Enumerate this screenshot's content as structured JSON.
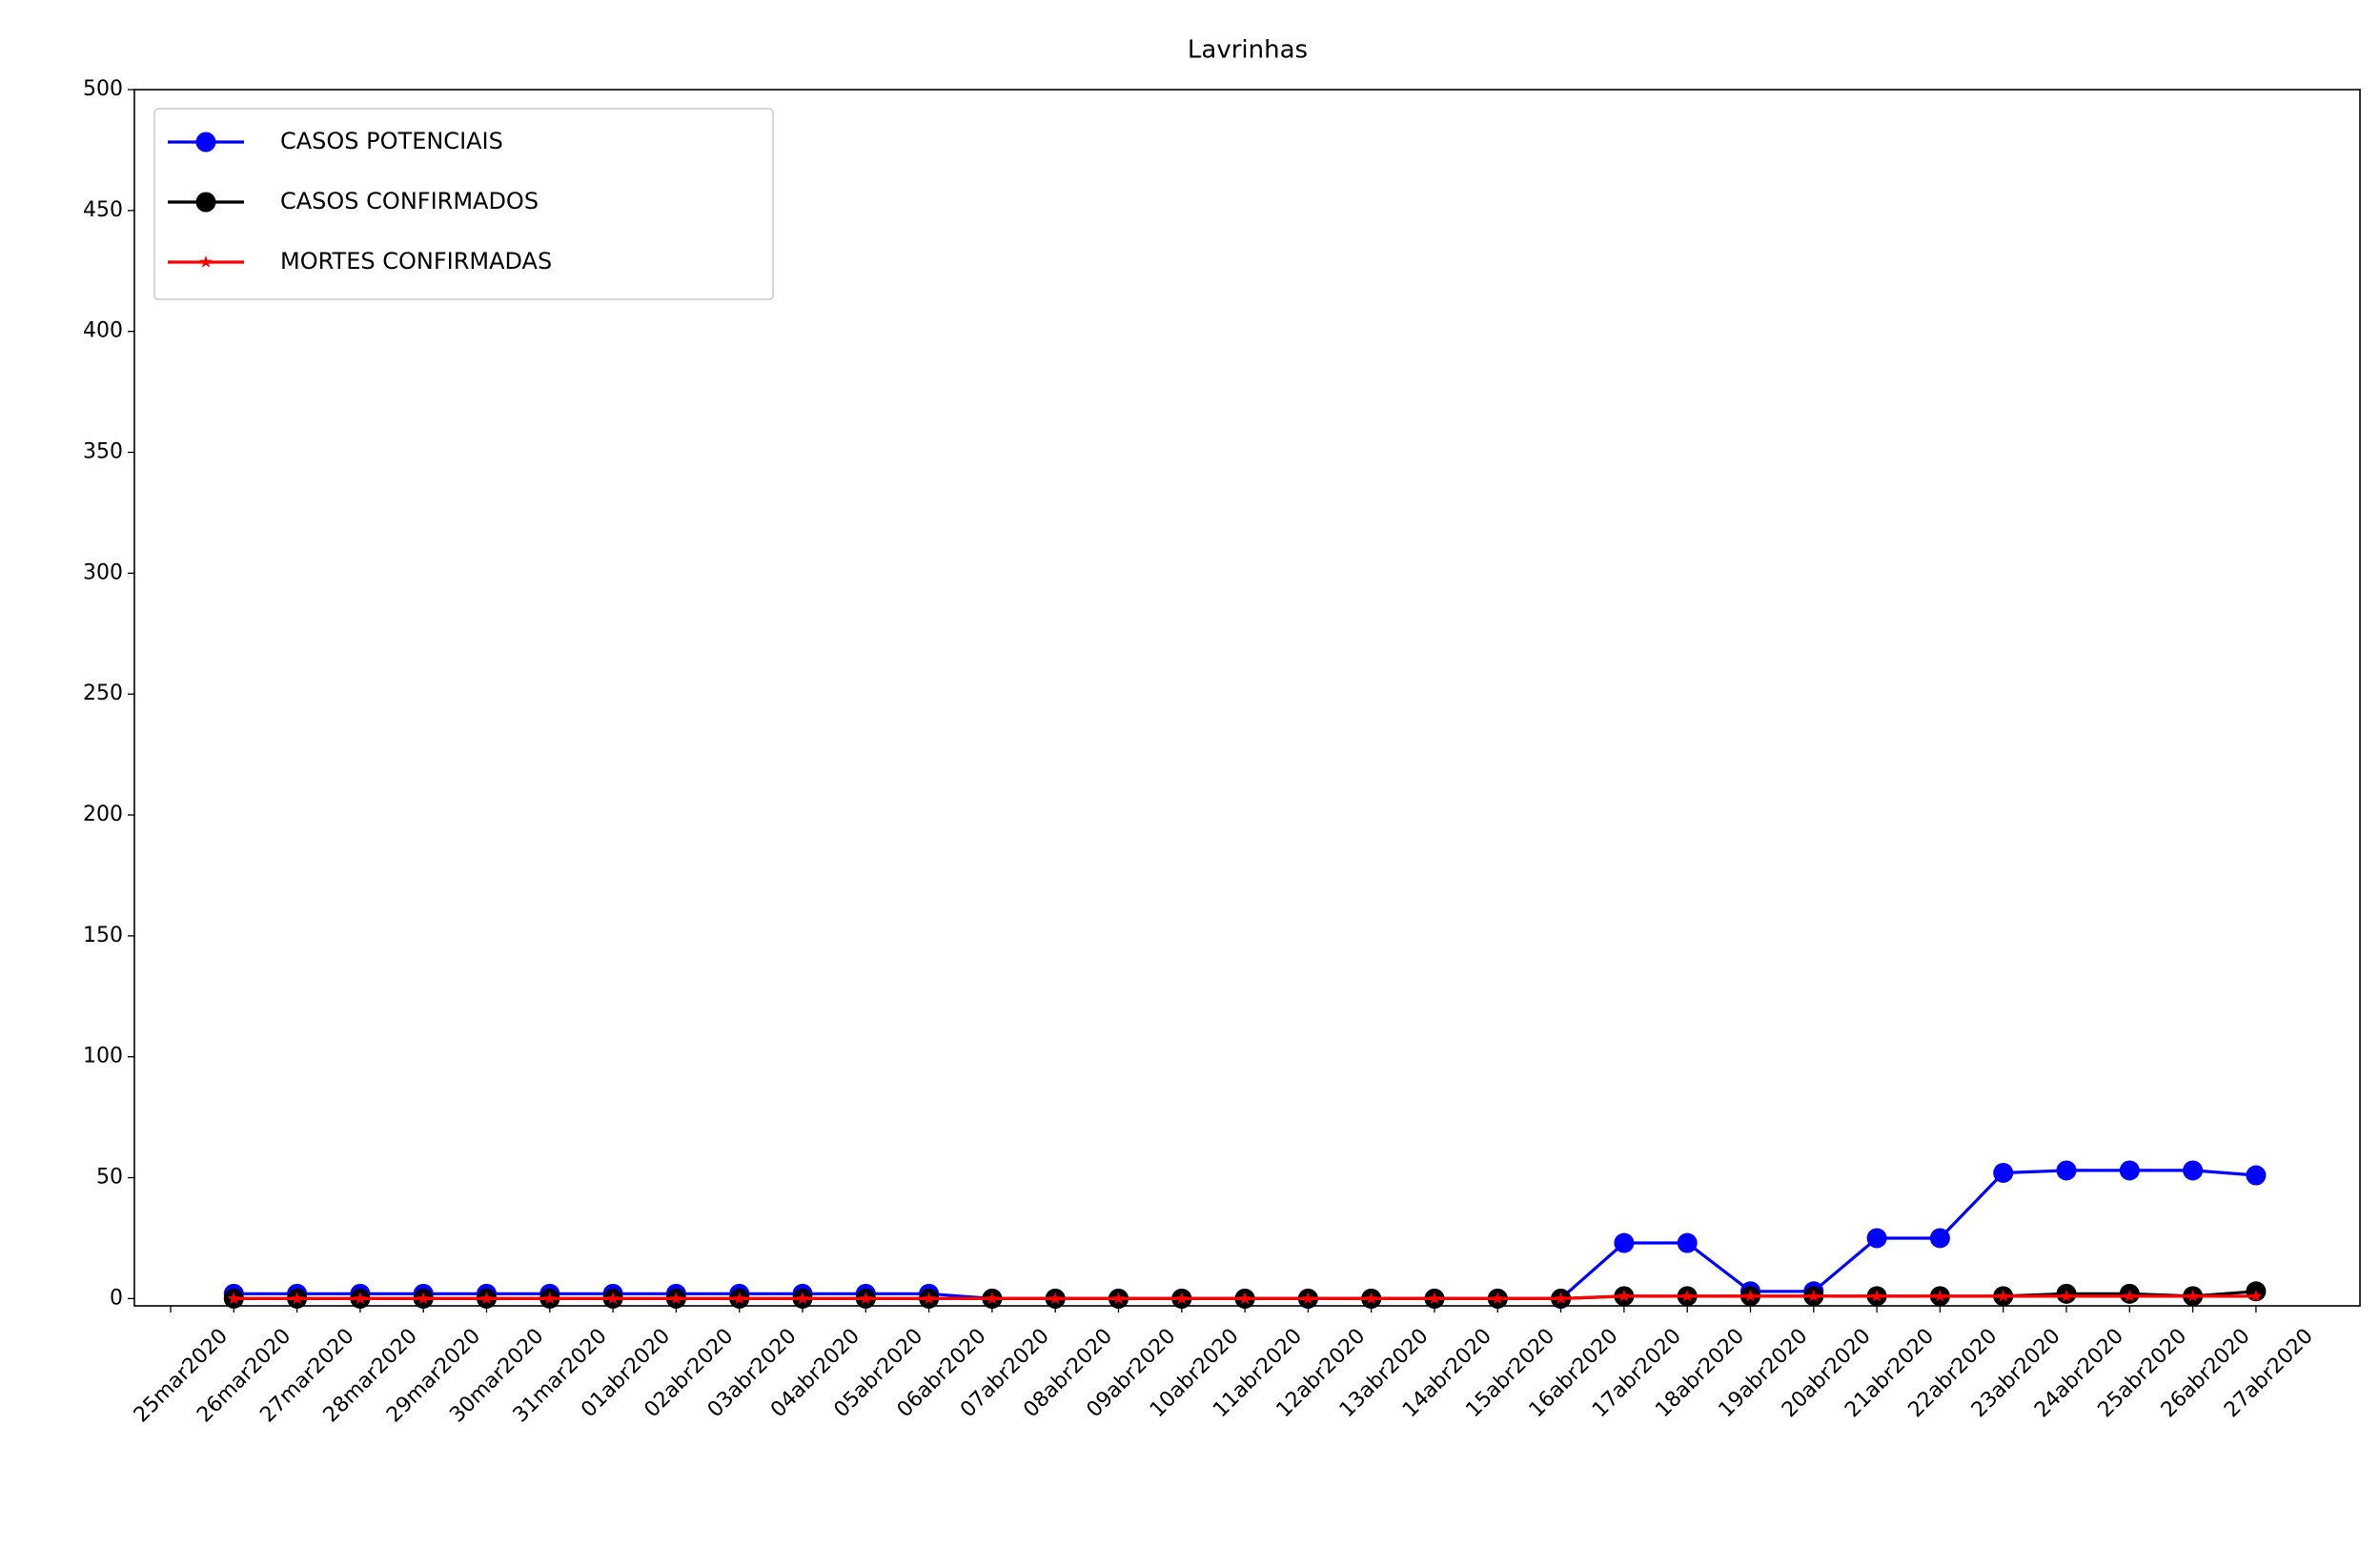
{
  "chart_data": {
    "type": "line",
    "title": "Lavrinhas",
    "categories": [
      "25mar2020",
      "26mar2020",
      "27mar2020",
      "28mar2020",
      "29mar2020",
      "30mar2020",
      "31mar2020",
      "01abr2020",
      "02abr2020",
      "03abr2020",
      "04abr2020",
      "05abr2020",
      "06abr2020",
      "07abr2020",
      "08abr2020",
      "09abr2020",
      "10abr2020",
      "11abr2020",
      "12abr2020",
      "13abr2020",
      "14abr2020",
      "15abr2020",
      "16abr2020",
      "17abr2020",
      "18abr2020",
      "19abr2020",
      "20abr2020",
      "21abr2020",
      "22abr2020",
      "23abr2020",
      "24abr2020",
      "25abr2020",
      "26abr2020",
      "27abr2020"
    ],
    "series": [
      {
        "name": "CASOS POTENCIAIS",
        "color": "#0000ff",
        "marker": "circle",
        "values": [
          null,
          2,
          2,
          2,
          2,
          2,
          2,
          2,
          2,
          2,
          2,
          2,
          2,
          0,
          0,
          0,
          0,
          0,
          0,
          0,
          0,
          0,
          0,
          23,
          23,
          3,
          3,
          25,
          25,
          52,
          53,
          53,
          53,
          51
        ]
      },
      {
        "name": "CASOS CONFIRMADOS",
        "color": "#000000",
        "marker": "circle",
        "values": [
          null,
          0,
          0,
          0,
          0,
          0,
          0,
          0,
          0,
          0,
          0,
          0,
          0,
          0,
          0,
          0,
          0,
          0,
          0,
          0,
          0,
          0,
          0,
          1,
          1,
          1,
          1,
          1,
          1,
          1,
          2,
          2,
          1,
          3
        ]
      },
      {
        "name": "MORTES CONFIRMADAS",
        "color": "#ff0000",
        "marker": "star",
        "values": [
          null,
          0,
          0,
          0,
          0,
          0,
          0,
          0,
          0,
          0,
          0,
          0,
          0,
          0,
          0,
          0,
          0,
          0,
          0,
          0,
          0,
          0,
          0,
          1,
          1,
          1,
          1,
          1,
          1,
          1,
          1,
          1,
          1,
          1
        ]
      }
    ],
    "ylim": [
      -3,
      500
    ],
    "yticks": [
      0,
      50,
      100,
      150,
      200,
      250,
      300,
      350,
      400,
      450,
      500
    ],
    "legend": "upper left"
  }
}
